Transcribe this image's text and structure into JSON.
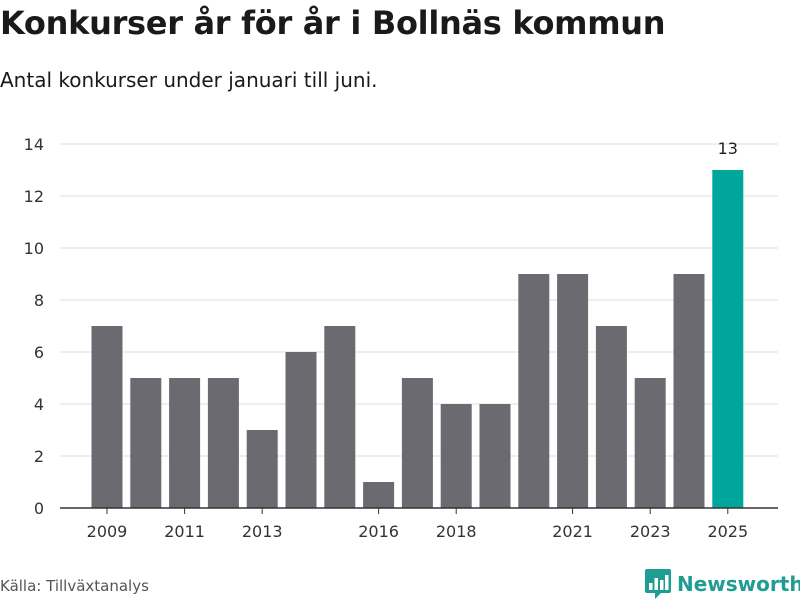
{
  "header": {
    "title": "Konkurser år för år i Bollnäs kommun",
    "subtitle": "Antal konkurser under januari till juni."
  },
  "footer": {
    "source": "Källa: Tillväxtanalys",
    "brand": "Newsworthy",
    "brand_icon": "newsworthy-logo-icon"
  },
  "colors": {
    "bar": "#6b6a70",
    "highlight": "#00a69a",
    "grid": "#dddddd",
    "axis": "#333333",
    "brand": "#1f9d93"
  },
  "chart_data": {
    "type": "bar",
    "title": "",
    "xlabel": "",
    "ylabel": "",
    "categories": [
      "2009",
      "2010",
      "2011",
      "2012",
      "2013",
      "2014",
      "2015",
      "2016",
      "2017",
      "2018",
      "2019",
      "2020",
      "2021",
      "2022",
      "2023",
      "2024",
      "2025"
    ],
    "values": [
      7,
      5,
      5,
      5,
      3,
      6,
      7,
      1,
      5,
      4,
      4,
      9,
      9,
      7,
      5,
      9,
      13
    ],
    "highlight_category": "2025",
    "data_labels": [
      {
        "category": "2025",
        "text": "13"
      }
    ],
    "x_tick_labels": [
      "2009",
      "2011",
      "2013",
      "2016",
      "2018",
      "2021",
      "2023",
      "2025"
    ],
    "y_ticks": [
      0,
      2,
      4,
      6,
      8,
      10,
      12,
      14
    ],
    "ylim": [
      0,
      14
    ],
    "grid": true,
    "legend": "none"
  }
}
